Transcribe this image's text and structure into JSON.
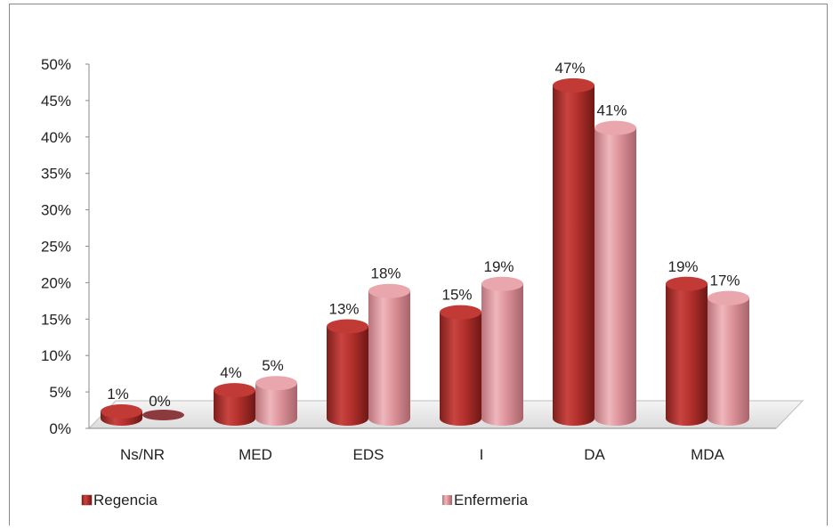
{
  "chart_data": {
    "type": "bar",
    "categories": [
      "Ns/NR",
      "MED",
      "EDS",
      "I",
      "DA",
      "MDA"
    ],
    "series": [
      {
        "name": "Regencia",
        "values": [
          1,
          4,
          13,
          15,
          47,
          19
        ],
        "color": "#b3302c",
        "labels": [
          "1%",
          "4%",
          "13%",
          "15%",
          "47%",
          "19%"
        ]
      },
      {
        "name": "Enfermeria",
        "values": [
          0,
          5,
          18,
          19,
          41,
          17
        ],
        "color": "#dc9299",
        "labels": [
          "0%",
          "5%",
          "18%",
          "19%",
          "41%",
          "17%"
        ]
      }
    ],
    "yticks": [
      "0%",
      "5%",
      "10%",
      "15%",
      "20%",
      "25%",
      "30%",
      "35%",
      "40%",
      "45%",
      "50%"
    ],
    "ylim": [
      0,
      50
    ],
    "legend": "bottom",
    "grid": false
  }
}
